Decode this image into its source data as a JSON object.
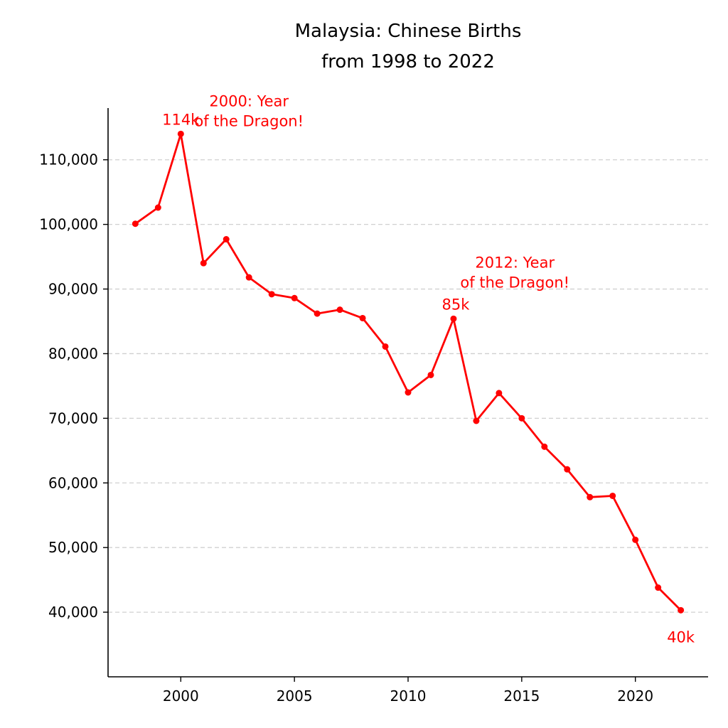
{
  "chart_data": {
    "type": "line",
    "title": "Malaysia: Chinese Births",
    "subtitle": "from 1998 to 2022",
    "xlabel": "",
    "ylabel": "",
    "xlim": [
      1996.8,
      2023.2
    ],
    "ylim": [
      30000,
      118000
    ],
    "grid": "y-dashed",
    "line_color": "#ff0000",
    "x_ticks": [
      2000,
      2005,
      2010,
      2015,
      2020
    ],
    "x_tick_labels": [
      "2000",
      "2005",
      "2010",
      "2015",
      "2020"
    ],
    "y_ticks": [
      40000,
      50000,
      60000,
      70000,
      80000,
      90000,
      100000,
      110000
    ],
    "y_tick_labels": [
      "40,000",
      "50,000",
      "60,000",
      "70,000",
      "80,000",
      "90,000",
      "100,000",
      "110,000"
    ],
    "series": [
      {
        "x": [
          1998,
          1999,
          2000,
          2001,
          2002,
          2003,
          2004,
          2005,
          2006,
          2007,
          2008,
          2009,
          2010,
          2011,
          2012,
          2013,
          2014,
          2015,
          2016,
          2017,
          2018,
          2019,
          2020,
          2021,
          2022
        ],
        "values": [
          100100,
          102600,
          114000,
          94000,
          97700,
          91800,
          89200,
          88600,
          86200,
          86800,
          85500,
          81100,
          74000,
          76700,
          85400,
          69600,
          73900,
          70000,
          65600,
          62100,
          57800,
          58000,
          51200,
          43800,
          40300
        ]
      }
    ],
    "annotations": [
      {
        "text": "114k",
        "x": 2000,
        "y": 114000,
        "color": "#ff0000"
      },
      {
        "text": "85k",
        "x": 2012,
        "y": 85400,
        "color": "#ff0000"
      },
      {
        "text": "40k",
        "x": 2022,
        "y": 40300,
        "color": "#ff0000"
      },
      {
        "lines": [
          "2000: Year",
          "of the Dragon!"
        ],
        "x": 2003,
        "y": 114000,
        "color": "#ff0000"
      },
      {
        "lines": [
          "2012: Year",
          "of the Dragon!"
        ],
        "x": 2014.7,
        "y": 89000,
        "color": "#ff0000"
      }
    ]
  }
}
